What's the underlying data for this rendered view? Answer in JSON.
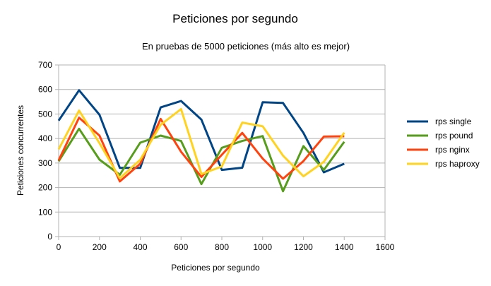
{
  "chart_data": {
    "type": "line",
    "title": "Peticiones por segundo",
    "subtitle": "En pruebas de 5000 peticiones (más alto es mejor)",
    "xlabel": "Peticiones por segundo",
    "ylabel": "Peticiones concurrentes",
    "xlim": [
      0,
      1600
    ],
    "ylim": [
      0,
      700
    ],
    "xticks": [
      0,
      200,
      400,
      600,
      800,
      1000,
      1200,
      1400,
      1600
    ],
    "yticks": [
      0,
      100,
      200,
      300,
      400,
      500,
      600,
      700
    ],
    "grid": "horizontal",
    "legend_position": "right",
    "x": [
      0,
      100,
      200,
      300,
      400,
      500,
      600,
      700,
      800,
      900,
      1000,
      1100,
      1200,
      1300,
      1400
    ],
    "series": [
      {
        "name": "rps single",
        "color": "#004586",
        "values": [
          473,
          597,
          497,
          280,
          280,
          527,
          553,
          477,
          272,
          281,
          548,
          545,
          423,
          262,
          297
        ]
      },
      {
        "name": "rps pound",
        "color": "#579d1c",
        "values": [
          307,
          440,
          314,
          252,
          383,
          412,
          390,
          214,
          362,
          390,
          410,
          185,
          369,
          272,
          387
        ]
      },
      {
        "name": "rps nginx",
        "color": "#ff420e",
        "values": [
          311,
          485,
          412,
          225,
          297,
          480,
          346,
          243,
          334,
          423,
          318,
          236,
          308,
          408,
          409
        ]
      },
      {
        "name": "rps haproxy",
        "color": "#ffd320",
        "values": [
          356,
          514,
          381,
          238,
          313,
          456,
          520,
          255,
          286,
          465,
          450,
          330,
          246,
          305,
          424
        ]
      }
    ]
  }
}
